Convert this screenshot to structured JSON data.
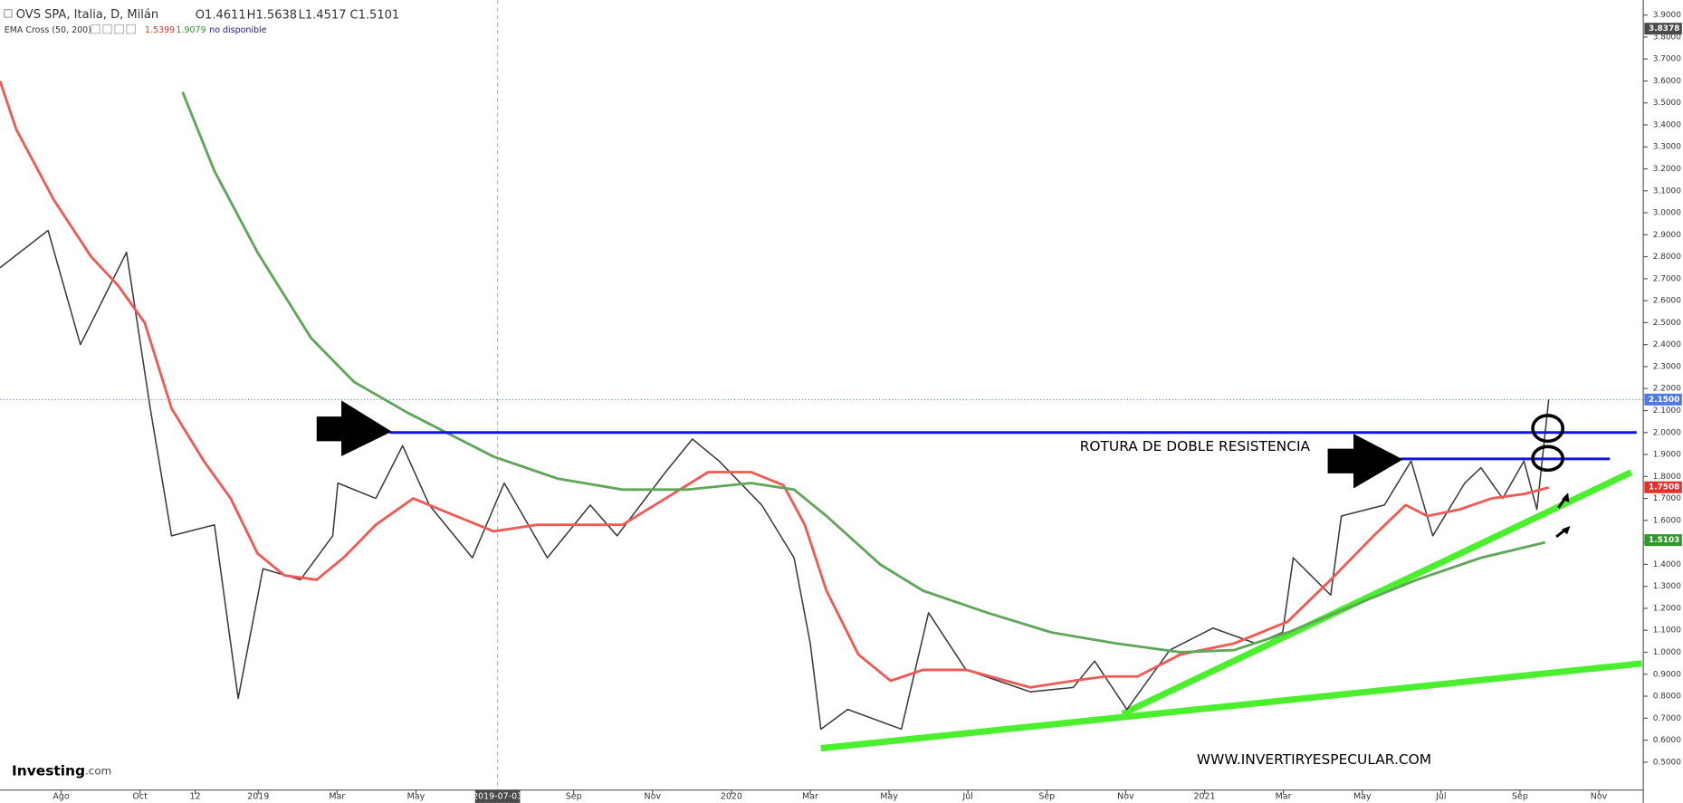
{
  "chart_data": {
    "type": "line",
    "title": "OVS SPA, Italia, D, Milán",
    "ohlc": [
      {
        "label": "O",
        "value": 1.4611
      },
      {
        "label": "H",
        "value": 1.5638
      },
      {
        "label": "L",
        "value": 1.4517
      },
      {
        "label": "C",
        "value": 1.5101
      }
    ],
    "indicator": {
      "name": "EMA Cross (50, 200)",
      "values": [
        1.5399,
        1.9079
      ],
      "colors": [
        "#e8302a",
        "#3a8f35"
      ],
      "status": "no disponible"
    },
    "xlim": [
      -1.55,
      40.1
    ],
    "ylim": [
      0.373,
      3.968
    ],
    "crosshair_x": 11.07,
    "xticks": [
      {
        "value": 0,
        "label": "Ago"
      },
      {
        "value": 2,
        "label": "Oct"
      },
      {
        "value": 3.4,
        "label": "12"
      },
      {
        "value": 5,
        "label": "2019"
      },
      {
        "value": 7,
        "label": "Mar"
      },
      {
        "value": 9,
        "label": "May"
      },
      {
        "value": 11.07,
        "label": "2019-07-03"
      },
      {
        "value": 13,
        "label": "Sep"
      },
      {
        "value": 15,
        "label": "Nov"
      },
      {
        "value": 17,
        "label": "2020"
      },
      {
        "value": 19,
        "label": "Mar"
      },
      {
        "value": 21,
        "label": "May"
      },
      {
        "value": 23,
        "label": "Jul"
      },
      {
        "value": 25,
        "label": "Sep"
      },
      {
        "value": 27,
        "label": "Nov"
      },
      {
        "value": 29,
        "label": "2021"
      },
      {
        "value": 31,
        "label": "Mar"
      },
      {
        "value": 33,
        "label": "May"
      },
      {
        "value": 35,
        "label": "Jul"
      },
      {
        "value": 37,
        "label": "Sep"
      },
      {
        "value": 39,
        "label": "Nov"
      }
    ],
    "yticks": [
      {
        "value": 0.5,
        "label": "0.5000"
      },
      {
        "value": 0.6,
        "label": "0.6000"
      },
      {
        "value": 0.7,
        "label": "0.7000"
      },
      {
        "value": 0.8,
        "label": "0.8000"
      },
      {
        "value": 0.9,
        "label": "0.9000"
      },
      {
        "value": 1.0,
        "label": "1.0000"
      },
      {
        "value": 1.1,
        "label": "1.1000"
      },
      {
        "value": 1.2,
        "label": "1.2000"
      },
      {
        "value": 1.3,
        "label": "1.3000"
      },
      {
        "value": 1.4,
        "label": "1.4000"
      },
      {
        "value": 1.5,
        "label": "1.5000"
      },
      {
        "value": 1.6,
        "label": "1.6000"
      },
      {
        "value": 1.7,
        "label": "1.7000"
      },
      {
        "value": 1.8,
        "label": "1.8000"
      },
      {
        "value": 1.9,
        "label": "1.9000"
      },
      {
        "value": 2.0,
        "label": "2.0000"
      },
      {
        "value": 2.1,
        "label": "2.1000"
      },
      {
        "value": 2.2,
        "label": "2.2000"
      },
      {
        "value": 2.3,
        "label": "2.3000"
      },
      {
        "value": 2.4,
        "label": "2.4000"
      },
      {
        "value": 2.5,
        "label": "2.5000"
      },
      {
        "value": 2.6,
        "label": "2.6000"
      },
      {
        "value": 2.7,
        "label": "2.7000"
      },
      {
        "value": 2.8,
        "label": "2.8000"
      },
      {
        "value": 2.9,
        "label": "2.9000"
      },
      {
        "value": 3.0,
        "label": "3.0000"
      },
      {
        "value": 3.1,
        "label": "3.1000"
      },
      {
        "value": 3.2,
        "label": "3.2000"
      },
      {
        "value": 3.3,
        "label": "3.3000"
      },
      {
        "value": 3.4,
        "label": "3.4000"
      },
      {
        "value": 3.5,
        "label": "3.5000"
      },
      {
        "value": 3.6,
        "label": "3.6000"
      },
      {
        "value": 3.7,
        "label": "3.7000"
      },
      {
        "value": 3.8,
        "label": "3.8000"
      },
      {
        "value": 3.9,
        "label": "3.9000"
      }
    ],
    "series": [
      {
        "color": "#3b3b3b",
        "x": [
          -1.55,
          -0.33,
          0.49,
          1.66,
          2.26,
          2.8,
          3.89,
          4.49,
          5.12,
          6.07,
          6.89,
          7.02,
          7.98,
          8.66,
          9.34,
          10.43,
          11.24,
          12.33,
          13.42,
          14.1,
          15.33,
          16.01,
          16.69,
          17.77,
          18.59,
          19.0,
          19.27,
          19.95,
          21.31,
          22.0,
          22.95,
          24.58,
          25.67,
          26.21,
          27.03,
          28.12,
          29.21,
          30.3,
          30.98,
          31.25,
          32.2,
          32.47,
          33.56,
          34.24,
          34.79,
          35.6,
          36.01,
          36.56,
          37.1,
          37.43,
          37.73
        ],
        "values": [
          2.75,
          2.92,
          2.4,
          2.82,
          2.11,
          1.53,
          1.58,
          0.79,
          1.38,
          1.33,
          1.53,
          1.77,
          1.7,
          1.94,
          1.67,
          1.43,
          1.77,
          1.43,
          1.67,
          1.53,
          1.82,
          1.97,
          1.87,
          1.67,
          1.43,
          1.04,
          0.65,
          0.74,
          0.65,
          1.18,
          0.92,
          0.82,
          0.84,
          0.96,
          0.74,
          1.01,
          1.11,
          1.04,
          1.09,
          1.43,
          1.26,
          1.62,
          1.67,
          1.87,
          1.53,
          1.77,
          1.84,
          1.7,
          1.87,
          1.65,
          2.15
        ]
      },
      {
        "color": "#ef5a55",
        "x": [
          -1.55,
          -1.14,
          -0.19,
          0.76,
          1.44,
          2.12,
          2.8,
          3.62,
          4.3,
          4.98,
          5.66,
          6.48,
          7.16,
          7.98,
          8.93,
          9.88,
          10.97,
          12.06,
          13.15,
          14.24,
          15.33,
          16.41,
          17.5,
          18.32,
          18.86,
          19.41,
          20.22,
          21.04,
          21.86,
          22.95,
          24.58,
          25.67,
          26.48,
          27.3,
          28.39,
          29.75,
          31.11,
          32.2,
          33.29,
          34.1,
          34.65,
          35.47,
          36.28,
          37.1,
          37.73
        ],
        "values": [
          3.6,
          3.38,
          3.06,
          2.8,
          2.67,
          2.5,
          2.11,
          1.87,
          1.7,
          1.45,
          1.35,
          1.33,
          1.43,
          1.58,
          1.7,
          1.63,
          1.55,
          1.58,
          1.58,
          1.58,
          1.7,
          1.82,
          1.82,
          1.76,
          1.58,
          1.28,
          0.99,
          0.87,
          0.92,
          0.92,
          0.84,
          0.87,
          0.89,
          0.89,
          0.99,
          1.04,
          1.14,
          1.33,
          1.53,
          1.67,
          1.62,
          1.65,
          1.7,
          1.72,
          1.75
        ]
      },
      {
        "color": "#5fa55a",
        "x": [
          3.08,
          3.89,
          4.98,
          6.34,
          7.43,
          8.79,
          9.88,
          10.97,
          12.6,
          14.24,
          15.87,
          17.5,
          18.59,
          19.41,
          20.77,
          21.86,
          23.49,
          25.12,
          26.76,
          28.39,
          29.75,
          31.11,
          32.74,
          34.38,
          36.01,
          37.64
        ],
        "values": [
          3.55,
          3.19,
          2.82,
          2.43,
          2.23,
          2.09,
          1.99,
          1.89,
          1.79,
          1.74,
          1.74,
          1.77,
          1.74,
          1.62,
          1.4,
          1.28,
          1.18,
          1.09,
          1.04,
          1.0,
          1.01,
          1.09,
          1.21,
          1.33,
          1.43,
          1.5
        ]
      }
    ],
    "last_tags": [
      {
        "value": 3.8378,
        "color": "#4a4a4a"
      },
      {
        "value": 2.15,
        "label": "2.1500",
        "color": "#4f7be8"
      },
      {
        "value": 1.7508,
        "color": "#e8302a"
      },
      {
        "value": 1.5103,
        "color": "#2e9a2a"
      }
    ],
    "levels": [
      {
        "value": 2.0,
        "x": [
          8.33,
          39.96
        ],
        "color": "#1414e0"
      },
      {
        "value": 1.88,
        "x": [
          33.97,
          39.28
        ],
        "color": "#1414e0"
      }
    ],
    "trendlines": [
      {
        "x": [
          19.27,
          40.09
        ],
        "values": [
          0.563,
          0.949
        ],
        "color": "#4cef2e"
      },
      {
        "x": [
          26.92,
          39.82
        ],
        "values": [
          0.72,
          1.819
        ],
        "color": "#4cef2e"
      }
    ],
    "annotations": [
      "ROTURA DE DOBLE RESISTENCIA",
      "WWW.INVERTIRYESPECULAR.COM"
    ],
    "brand": "Investing",
    "brand_suffix": ".com"
  }
}
